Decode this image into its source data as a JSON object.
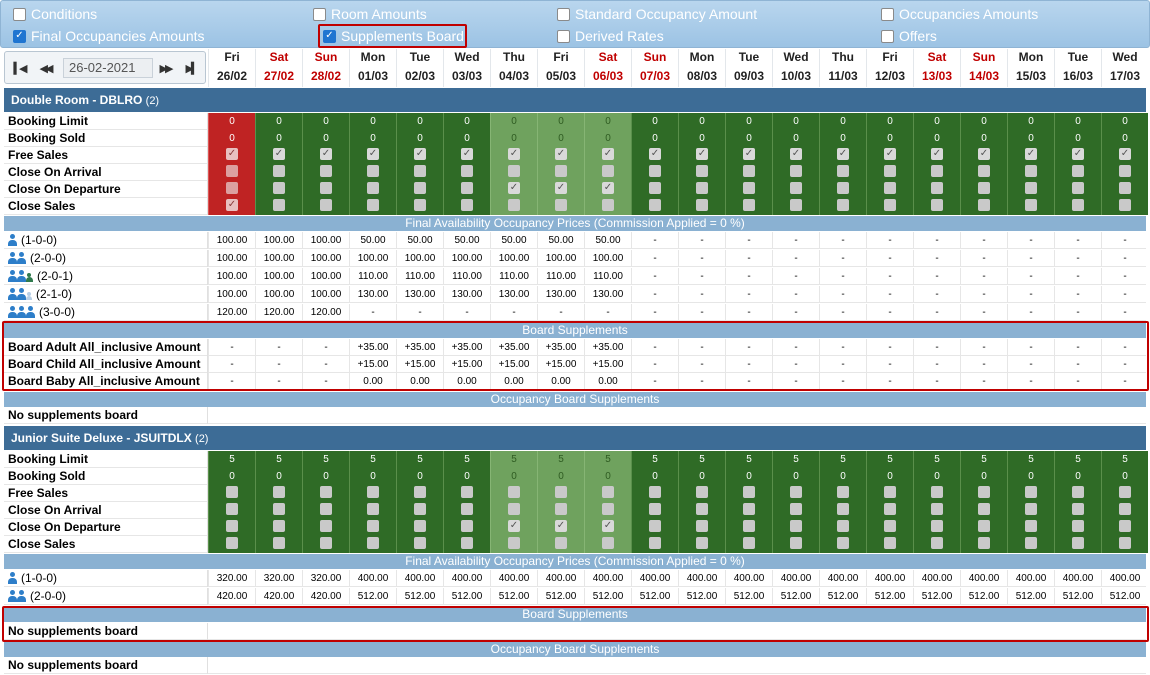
{
  "toolbar": {
    "options": [
      {
        "label": "Conditions",
        "checked": false
      },
      {
        "label": "Room Amounts",
        "checked": false
      },
      {
        "label": "Standard Occupancy Amount",
        "checked": false
      },
      {
        "label": "Occupancies Amounts",
        "checked": false
      },
      {
        "label": "Final Occupancies Amounts",
        "checked": true
      },
      {
        "label": "Supplements Board",
        "checked": true
      },
      {
        "label": "Derived Rates",
        "checked": false
      },
      {
        "label": "Offers",
        "checked": false
      }
    ]
  },
  "nav": {
    "date": "26-02-2021"
  },
  "days": [
    {
      "name": "Fri",
      "date": "26/02",
      "weekend": false
    },
    {
      "name": "Sat",
      "date": "27/02",
      "weekend": true
    },
    {
      "name": "Sun",
      "date": "28/02",
      "weekend": true
    },
    {
      "name": "Mon",
      "date": "01/03",
      "weekend": false
    },
    {
      "name": "Tue",
      "date": "02/03",
      "weekend": false
    },
    {
      "name": "Wed",
      "date": "03/03",
      "weekend": false
    },
    {
      "name": "Thu",
      "date": "04/03",
      "weekend": false
    },
    {
      "name": "Fri",
      "date": "05/03",
      "weekend": false
    },
    {
      "name": "Sat",
      "date": "06/03",
      "weekend": true
    },
    {
      "name": "Sun",
      "date": "07/03",
      "weekend": true
    },
    {
      "name": "Mon",
      "date": "08/03",
      "weekend": false
    },
    {
      "name": "Tue",
      "date": "09/03",
      "weekend": false
    },
    {
      "name": "Wed",
      "date": "10/03",
      "weekend": false
    },
    {
      "name": "Thu",
      "date": "11/03",
      "weekend": false
    },
    {
      "name": "Fri",
      "date": "12/03",
      "weekend": false
    },
    {
      "name": "Sat",
      "date": "13/03",
      "weekend": true
    },
    {
      "name": "Sun",
      "date": "14/03",
      "weekend": true
    },
    {
      "name": "Mon",
      "date": "15/03",
      "weekend": false
    },
    {
      "name": "Tue",
      "date": "16/03",
      "weekend": false
    },
    {
      "name": "Wed",
      "date": "17/03",
      "weekend": false
    }
  ],
  "rooms": [
    {
      "title": "Double Room - DBLRO",
      "count": "(2)",
      "availability": [
        {
          "label": "Booking Limit",
          "values": [
            "0",
            "0",
            "0",
            "0",
            "0",
            "0",
            "0",
            "0",
            "0",
            "0",
            "0",
            "0",
            "0",
            "0",
            "0",
            "0",
            "0",
            "0",
            "0",
            "0"
          ]
        },
        {
          "label": "Booking Sold",
          "values": [
            "0",
            "0",
            "0",
            "0",
            "0",
            "0",
            "0",
            "0",
            "0",
            "0",
            "0",
            "0",
            "0",
            "0",
            "0",
            "0",
            "0",
            "0",
            "0",
            "0"
          ]
        },
        {
          "label": "Free Sales",
          "checks": [
            1,
            1,
            1,
            1,
            1,
            1,
            1,
            1,
            1,
            1,
            1,
            1,
            1,
            1,
            1,
            1,
            1,
            1,
            1,
            1
          ]
        },
        {
          "label": "Close On Arrival",
          "checks": [
            0,
            0,
            0,
            0,
            0,
            0,
            0,
            0,
            0,
            0,
            0,
            0,
            0,
            0,
            0,
            0,
            0,
            0,
            0,
            0
          ]
        },
        {
          "label": "Close On Departure",
          "checks": [
            0,
            0,
            0,
            0,
            0,
            0,
            1,
            1,
            1,
            0,
            0,
            0,
            0,
            0,
            0,
            0,
            0,
            0,
            0,
            0
          ]
        },
        {
          "label": "Close Sales",
          "checks": [
            1,
            0,
            0,
            0,
            0,
            0,
            0,
            0,
            0,
            0,
            0,
            0,
            0,
            0,
            0,
            0,
            0,
            0,
            0,
            0
          ]
        }
      ],
      "cell_status": [
        "closed",
        "open",
        "open",
        "open",
        "open",
        "open",
        "light",
        "light",
        "light",
        "open",
        "open",
        "open",
        "open",
        "open",
        "open",
        "open",
        "open",
        "open",
        "open",
        "open"
      ],
      "prices_title": "Final Availability Occupancy Prices (Commission Applied = 0 %)",
      "prices": [
        {
          "label": "(1-0-0)",
          "icons": [
            "adult"
          ],
          "values": [
            "100.00",
            "100.00",
            "100.00",
            "50.00",
            "50.00",
            "50.00",
            "50.00",
            "50.00",
            "50.00",
            "-",
            "-",
            "-",
            "-",
            "-",
            "-",
            "-",
            "-",
            "-",
            "-",
            "-"
          ]
        },
        {
          "label": "(2-0-0)",
          "icons": [
            "adult",
            "adult"
          ],
          "values": [
            "100.00",
            "100.00",
            "100.00",
            "100.00",
            "100.00",
            "100.00",
            "100.00",
            "100.00",
            "100.00",
            "-",
            "-",
            "-",
            "-",
            "-",
            "-",
            "-",
            "-",
            "-",
            "-",
            "-"
          ]
        },
        {
          "label": "(2-0-1)",
          "icons": [
            "adult",
            "adult",
            "child"
          ],
          "values": [
            "100.00",
            "100.00",
            "100.00",
            "110.00",
            "110.00",
            "110.00",
            "110.00",
            "110.00",
            "110.00",
            "-",
            "-",
            "-",
            "-",
            "-",
            "-",
            "-",
            "-",
            "-",
            "-",
            "-"
          ]
        },
        {
          "label": "(2-1-0)",
          "icons": [
            "adult",
            "adult",
            "baby"
          ],
          "values": [
            "100.00",
            "100.00",
            "100.00",
            "130.00",
            "130.00",
            "130.00",
            "130.00",
            "130.00",
            "130.00",
            "-",
            "-",
            "-",
            "-",
            "-",
            "-",
            "-",
            "-",
            "-",
            "-",
            "-"
          ]
        },
        {
          "label": "(3-0-0)",
          "icons": [
            "adult",
            "adult",
            "adult"
          ],
          "values": [
            "120.00",
            "120.00",
            "120.00",
            "-",
            "-",
            "-",
            "-",
            "-",
            "-",
            "-",
            "-",
            "-",
            "-",
            "-",
            "-",
            "-",
            "-",
            "-",
            "-",
            "-"
          ]
        }
      ],
      "board_title": "Board Supplements",
      "board": [
        {
          "label": "Board Adult All_inclusive Amount",
          "values": [
            "-",
            "-",
            "-",
            "+35.00",
            "+35.00",
            "+35.00",
            "+35.00",
            "+35.00",
            "+35.00",
            "-",
            "-",
            "-",
            "-",
            "-",
            "-",
            "-",
            "-",
            "-",
            "-",
            "-"
          ]
        },
        {
          "label": "Board Child All_inclusive Amount",
          "values": [
            "-",
            "-",
            "-",
            "+15.00",
            "+15.00",
            "+15.00",
            "+15.00",
            "+15.00",
            "+15.00",
            "-",
            "-",
            "-",
            "-",
            "-",
            "-",
            "-",
            "-",
            "-",
            "-",
            "-"
          ]
        },
        {
          "label": "Board Baby All_inclusive Amount",
          "values": [
            "-",
            "-",
            "-",
            "0.00",
            "0.00",
            "0.00",
            "0.00",
            "0.00",
            "0.00",
            "-",
            "-",
            "-",
            "-",
            "-",
            "-",
            "-",
            "-",
            "-",
            "-",
            "-"
          ]
        }
      ],
      "occ_board_title": "Occupancy Board Supplements",
      "occ_board_text": "No supplements board"
    },
    {
      "title": "Junior Suite Deluxe - JSUITDLX",
      "count": "(2)",
      "availability": [
        {
          "label": "Booking Limit",
          "values": [
            "5",
            "5",
            "5",
            "5",
            "5",
            "5",
            "5",
            "5",
            "5",
            "5",
            "5",
            "5",
            "5",
            "5",
            "5",
            "5",
            "5",
            "5",
            "5",
            "5"
          ]
        },
        {
          "label": "Booking Sold",
          "values": [
            "0",
            "0",
            "0",
            "0",
            "0",
            "0",
            "0",
            "0",
            "0",
            "0",
            "0",
            "0",
            "0",
            "0",
            "0",
            "0",
            "0",
            "0",
            "0",
            "0"
          ]
        },
        {
          "label": "Free Sales",
          "checks": [
            0,
            0,
            0,
            0,
            0,
            0,
            0,
            0,
            0,
            0,
            0,
            0,
            0,
            0,
            0,
            0,
            0,
            0,
            0,
            0
          ]
        },
        {
          "label": "Close On Arrival",
          "checks": [
            0,
            0,
            0,
            0,
            0,
            0,
            0,
            0,
            0,
            0,
            0,
            0,
            0,
            0,
            0,
            0,
            0,
            0,
            0,
            0
          ]
        },
        {
          "label": "Close On Departure",
          "checks": [
            0,
            0,
            0,
            0,
            0,
            0,
            1,
            1,
            1,
            0,
            0,
            0,
            0,
            0,
            0,
            0,
            0,
            0,
            0,
            0
          ]
        },
        {
          "label": "Close Sales",
          "checks": [
            0,
            0,
            0,
            0,
            0,
            0,
            0,
            0,
            0,
            0,
            0,
            0,
            0,
            0,
            0,
            0,
            0,
            0,
            0,
            0
          ]
        }
      ],
      "cell_status": [
        "open",
        "open",
        "open",
        "open",
        "open",
        "open",
        "light",
        "light",
        "light",
        "open",
        "open",
        "open",
        "open",
        "open",
        "open",
        "open",
        "open",
        "open",
        "open",
        "open"
      ],
      "prices_title": "Final Availability Occupancy Prices (Commission Applied = 0 %)",
      "prices": [
        {
          "label": "(1-0-0)",
          "icons": [
            "adult"
          ],
          "values": [
            "320.00",
            "320.00",
            "320.00",
            "400.00",
            "400.00",
            "400.00",
            "400.00",
            "400.00",
            "400.00",
            "400.00",
            "400.00",
            "400.00",
            "400.00",
            "400.00",
            "400.00",
            "400.00",
            "400.00",
            "400.00",
            "400.00",
            "400.00"
          ]
        },
        {
          "label": "(2-0-0)",
          "icons": [
            "adult",
            "adult"
          ],
          "values": [
            "420.00",
            "420.00",
            "420.00",
            "512.00",
            "512.00",
            "512.00",
            "512.00",
            "512.00",
            "512.00",
            "512.00",
            "512.00",
            "512.00",
            "512.00",
            "512.00",
            "512.00",
            "512.00",
            "512.00",
            "512.00",
            "512.00",
            "512.00"
          ]
        }
      ],
      "board_title": "Board Supplements",
      "board_text": "No supplements board",
      "occ_board_title": "Occupancy Board Supplements",
      "occ_board_text": "No supplements board"
    }
  ],
  "colors": {
    "open": "#2f6b26",
    "light": "#6fa25e",
    "closed": "#bf2323",
    "section": "#3d6c96",
    "subbar": "#8ab1d2",
    "highlight": "#c00000"
  },
  "icons": {
    "first": "double-chevron-left-icon",
    "prev": "chevron-left-icon",
    "next": "chevron-right-icon",
    "last": "double-chevron-right-icon",
    "adult": "adult-icon",
    "child": "child-icon",
    "baby": "baby-icon"
  }
}
